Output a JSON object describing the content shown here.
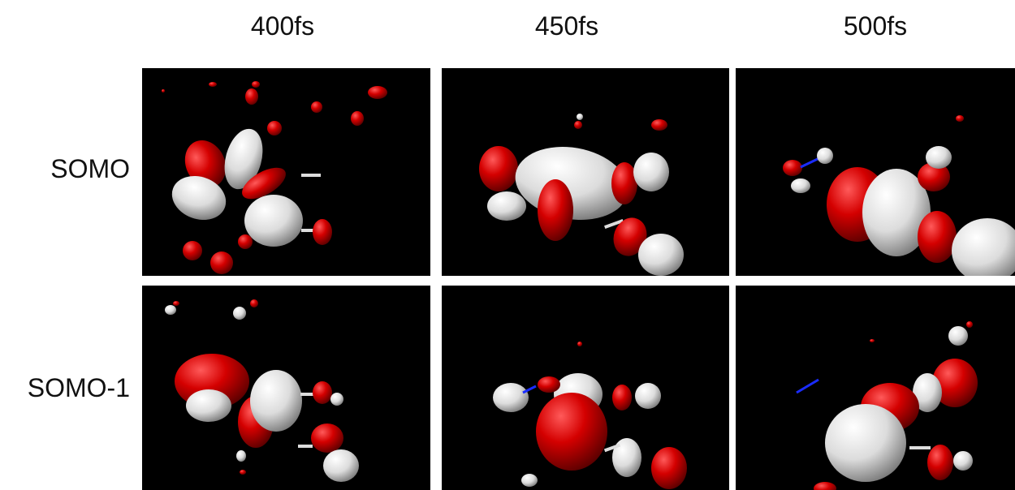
{
  "columns": [
    "400fs",
    "450fs",
    "500fs"
  ],
  "rows": [
    "SOMO",
    "SOMO-1"
  ],
  "colors": {
    "positive_lobe": "#d40000",
    "negative_lobe": "#e8e8e8",
    "background": "#000000",
    "bond_blue": "#1a2cff"
  }
}
